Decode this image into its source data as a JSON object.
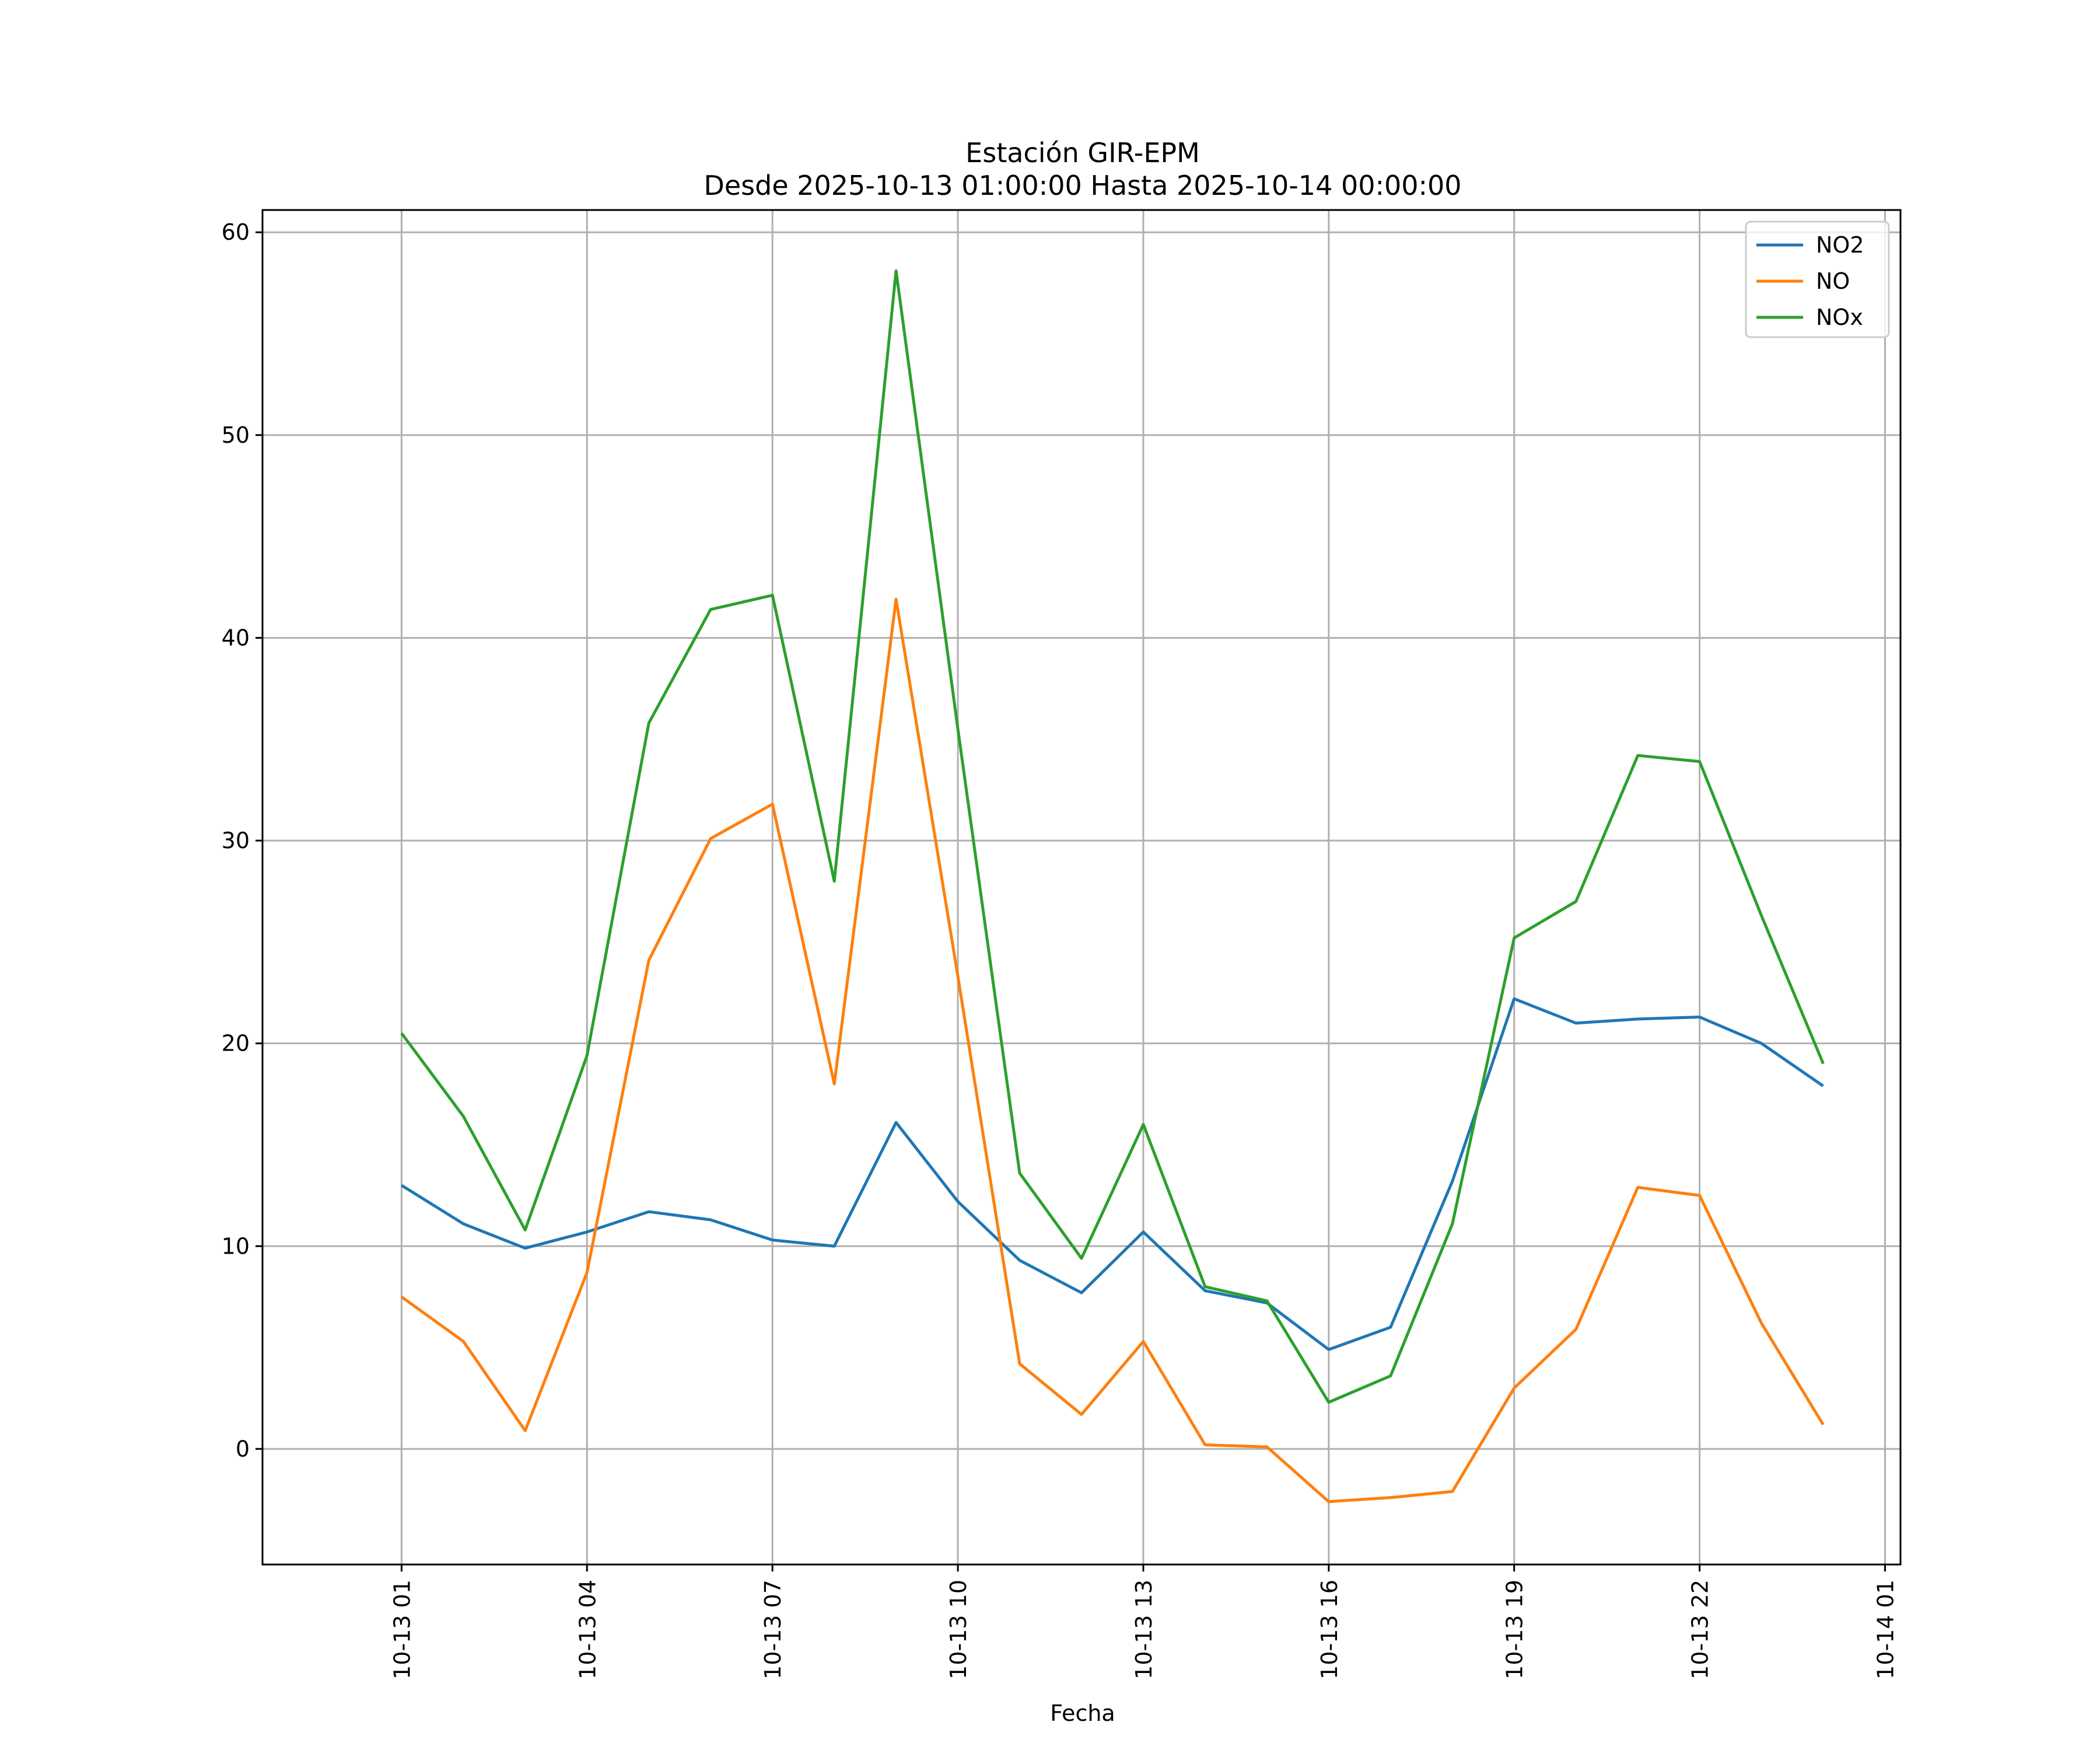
{
  "chart_data": {
    "type": "line",
    "title": "Estación GIR-EPM",
    "subtitle": "Desde 2025-10-13 01:00:00 Hasta 2025-10-14 00:00:00",
    "xlabel": "Fecha",
    "ylabel": "",
    "x": [
      "2025-10-13 01:00",
      "2025-10-13 02:00",
      "2025-10-13 03:00",
      "2025-10-13 04:00",
      "2025-10-13 05:00",
      "2025-10-13 06:00",
      "2025-10-13 07:00",
      "2025-10-13 08:00",
      "2025-10-13 09:00",
      "2025-10-13 10:00",
      "2025-10-13 11:00",
      "2025-10-13 12:00",
      "2025-10-13 13:00",
      "2025-10-13 14:00",
      "2025-10-13 15:00",
      "2025-10-13 16:00",
      "2025-10-13 17:00",
      "2025-10-13 18:00",
      "2025-10-13 19:00",
      "2025-10-13 20:00",
      "2025-10-13 21:00",
      "2025-10-13 22:00",
      "2025-10-13 23:00",
      "2025-10-14 00:00"
    ],
    "xticks": [
      "10-13 01",
      "10-13 04",
      "10-13 07",
      "10-13 10",
      "10-13 13",
      "10-13 16",
      "10-13 19",
      "10-13 22",
      "10-14 01"
    ],
    "yticks": [
      0,
      10,
      20,
      30,
      40,
      50,
      60
    ],
    "ylim": [
      -5.7,
      61.1
    ],
    "xlim": [
      "2025-10-12 22:45",
      "2025-10-14 01:15"
    ],
    "grid": true,
    "legend_position": "top-right",
    "series": [
      {
        "name": "NO2",
        "color": "#1f77b4",
        "values": [
          13.0,
          11.1,
          9.9,
          10.7,
          11.7,
          11.3,
          10.3,
          10.0,
          16.1,
          12.2,
          9.3,
          7.7,
          10.7,
          7.8,
          7.2,
          4.9,
          6.0,
          13.2,
          22.2,
          21.0,
          21.2,
          21.3,
          20.0,
          17.9
        ]
      },
      {
        "name": "NO",
        "color": "#ff7f0e",
        "values": [
          7.5,
          5.3,
          0.9,
          8.7,
          24.1,
          30.1,
          31.8,
          18.0,
          41.9,
          23.3,
          4.2,
          1.7,
          5.3,
          0.2,
          0.1,
          -2.6,
          -2.4,
          -2.1,
          3.0,
          5.9,
          12.9,
          12.5,
          6.2,
          1.2
        ]
      },
      {
        "name": "NOx",
        "color": "#2ca02c",
        "values": [
          20.5,
          16.4,
          10.8,
          19.4,
          35.8,
          41.4,
          42.1,
          28.0,
          58.1,
          35.5,
          13.6,
          9.4,
          16.0,
          8.0,
          7.3,
          2.3,
          3.6,
          11.1,
          25.2,
          27.0,
          34.2,
          33.9,
          26.3,
          19.0
        ]
      }
    ]
  }
}
